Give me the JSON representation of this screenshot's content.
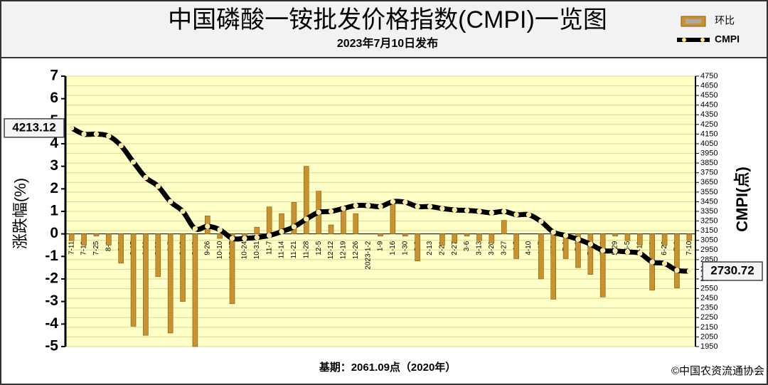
{
  "chart_data": {
    "type": "bar-line",
    "title": "中国磷酸一铵批发价格指数(CMPI)一览图",
    "subtitle": "2023年7月10日发布",
    "y_label": "涨跌幅(%)",
    "y2_label": "CMPI(点)",
    "footnote": "基期：2061.09点（2020年）",
    "source": "©中国农资流通协会",
    "categories": [
      "7-11",
      "7-18",
      "7-25",
      "8-1",
      "8-8",
      "8-15",
      "8-22",
      "8-29",
      "9-5",
      "9-12",
      "9-19",
      "9-26",
      "10-10",
      "10-17",
      "10-24",
      "10-31",
      "11-7",
      "11-14",
      "11-21",
      "11-28",
      "12-5",
      "12-12",
      "12-19",
      "12-26",
      "2023-1-2",
      "1-9",
      "1-16",
      "1-30",
      "2-6",
      "2-13",
      "2-20",
      "2-27",
      "3-6",
      "3-13",
      "3-20",
      "3-27",
      "4-3",
      "4-10",
      "4-17",
      "4-24",
      "5-1",
      "5-8",
      "5-16",
      "5-22",
      "5-29",
      "6-5",
      "6-12",
      "6-19",
      "6-26",
      "7-3",
      "7-10"
    ],
    "series": [
      {
        "name": "环比",
        "color": "#c9922e",
        "values": [
          -0.3,
          -0.5,
          -0.1,
          -0.5,
          -1.3,
          -4.1,
          -4.5,
          -1.9,
          -4.4,
          -3.0,
          -5.0,
          0.8,
          -0.2,
          -3.1,
          -0.1,
          0.3,
          1.2,
          0.9,
          1.4,
          3.0,
          1.9,
          0.4,
          1.1,
          0.9,
          0,
          -0.1,
          1.4,
          -0.1,
          -1.2,
          0,
          -0.5,
          -0.4,
          -0.1,
          -0.3,
          -0.4,
          0.6,
          -1.1,
          0,
          -2.0,
          -2.9,
          -1.1,
          -1.5,
          -1.8,
          -2.8,
          -0.1,
          -0.3,
          -0.5,
          -2.5,
          -0.5,
          -2.4,
          -0.3
        ]
      },
      {
        "name": "CMPI",
        "color": "#000000",
        "axis": "y2",
        "values": [
          4213.12,
          4150,
          4150,
          4130,
          4030,
          3860,
          3700,
          3610,
          3450,
          3350,
          3170,
          3195,
          3160,
          3070,
          3070,
          3080,
          3100,
          3140,
          3190,
          3270,
          3340,
          3350,
          3380,
          3410,
          3410,
          3400,
          3450,
          3445,
          3400,
          3400,
          3380,
          3365,
          3360,
          3350,
          3335,
          3350,
          3315,
          3315,
          3245,
          3135,
          3100,
          3060,
          3010,
          2945,
          2940,
          2930,
          2915,
          2825,
          2810,
          2740,
          2730.72
        ]
      }
    ],
    "ylim": [
      -5,
      7
    ],
    "yticks": [
      -5,
      -4,
      -3,
      -2,
      -1,
      0,
      1,
      2,
      3,
      4,
      5,
      6,
      7
    ],
    "y2lim": [
      1950,
      4750
    ],
    "y2ticks": [
      1950,
      2050,
      2150,
      2250,
      2350,
      2450,
      2550,
      2650,
      2750,
      2850,
      2950,
      3050,
      3150,
      3250,
      3350,
      3450,
      3550,
      3650,
      3750,
      3850,
      3950,
      4050,
      4150,
      4250,
      4350,
      4450,
      4550,
      4650,
      4750
    ],
    "grid": true
  }
}
